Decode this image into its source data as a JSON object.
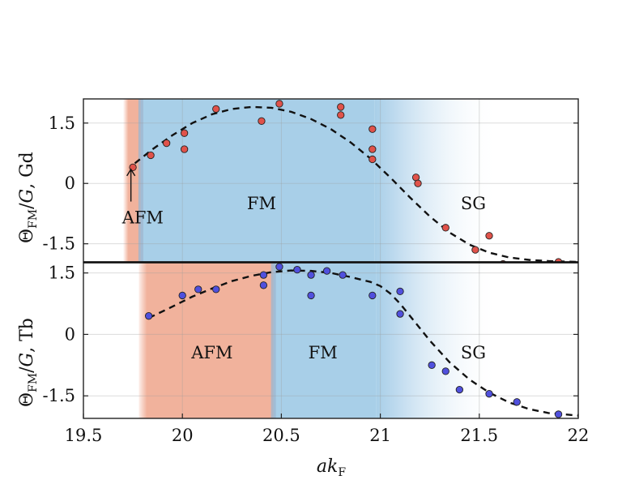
{
  "chart_data": [
    {
      "type": "scatter",
      "panel": "top",
      "ylabel": "ΘFM/G, Gd",
      "xlim": [
        19.5,
        22
      ],
      "ylim": [
        -1.95,
        2.1
      ],
      "yticks": [
        1.5,
        0,
        -1.5
      ],
      "ytick_labels": [
        "1.5",
        "0",
        "-1.5"
      ],
      "grid": true,
      "point_color": "#e0524a",
      "regions": [
        {
          "label": "AFM",
          "from": 19.7,
          "to": 19.79,
          "color": "#efae98"
        },
        {
          "label": "FM",
          "from": 19.79,
          "to": 20.97,
          "color": "#a8cfe8"
        },
        {
          "label": "SG",
          "from": 20.97,
          "to": 21.6,
          "color": "#ffffff"
        }
      ],
      "region_labels": [
        {
          "text": "AFM",
          "x": 19.8,
          "y": -0.85
        },
        {
          "text": "FM",
          "x": 20.4,
          "y": -0.5
        },
        {
          "text": "SG",
          "x": 21.47,
          "y": -0.5
        }
      ],
      "annotation_arrow": {
        "x": 19.74,
        "y_from": -0.45,
        "y_to": 0.35
      },
      "points": [
        {
          "x": 19.75,
          "y": 0.4
        },
        {
          "x": 19.84,
          "y": 0.7
        },
        {
          "x": 19.92,
          "y": 1.0
        },
        {
          "x": 20.01,
          "y": 1.25
        },
        {
          "x": 20.01,
          "y": 0.85
        },
        {
          "x": 20.17,
          "y": 1.85
        },
        {
          "x": 20.4,
          "y": 1.55
        },
        {
          "x": 20.49,
          "y": 1.98
        },
        {
          "x": 20.8,
          "y": 1.9
        },
        {
          "x": 20.8,
          "y": 1.7
        },
        {
          "x": 20.96,
          "y": 1.35
        },
        {
          "x": 20.96,
          "y": 0.85
        },
        {
          "x": 20.96,
          "y": 0.6
        },
        {
          "x": 21.18,
          "y": 0.15
        },
        {
          "x": 21.19,
          "y": 0.0
        },
        {
          "x": 21.33,
          "y": -1.1
        },
        {
          "x": 21.48,
          "y": -1.65
        },
        {
          "x": 21.55,
          "y": -1.3
        },
        {
          "x": 21.62,
          "y": -2.0
        },
        {
          "x": 21.9,
          "y": -1.95
        }
      ],
      "fit_line": {
        "style": "dashed",
        "x": [
          19.76,
          19.85,
          19.95,
          20.05,
          20.15,
          20.25,
          20.35,
          20.45,
          20.55,
          20.65,
          20.75,
          20.85,
          20.95,
          21.05,
          21.15,
          21.25,
          21.35,
          21.45,
          21.55,
          21.65,
          21.75,
          21.85,
          22.0
        ],
        "y": [
          0.5,
          0.85,
          1.2,
          1.5,
          1.72,
          1.85,
          1.9,
          1.88,
          1.78,
          1.6,
          1.35,
          1.02,
          0.62,
          0.15,
          -0.35,
          -0.82,
          -1.22,
          -1.52,
          -1.72,
          -1.84,
          -1.9,
          -1.93,
          -1.95
        ]
      }
    },
    {
      "type": "scatter",
      "panel": "bottom",
      "ylabel": "ΘFM/G, Tb",
      "xlabel": "akF",
      "xlim": [
        19.5,
        22
      ],
      "ylim": [
        -2.05,
        1.75
      ],
      "xticks": [
        19.5,
        20,
        20.5,
        21,
        21.5,
        22
      ],
      "xtick_labels": [
        "19.5",
        "20",
        "20.5",
        "21",
        "21.5",
        "22"
      ],
      "yticks": [
        1.5,
        0,
        -1.5
      ],
      "ytick_labels": [
        "1.5",
        "0",
        "-1.5"
      ],
      "grid": true,
      "point_color": "#5050dd",
      "regions": [
        {
          "label": "AFM",
          "from": 19.78,
          "to": 20.46,
          "color": "#efae98"
        },
        {
          "label": "FM",
          "from": 20.46,
          "to": 20.98,
          "color": "#a8cfe8"
        },
        {
          "label": "SG",
          "from": 20.98,
          "to": 21.6,
          "color": "#ffffff"
        }
      ],
      "region_labels": [
        {
          "text": "AFM",
          "x": 20.15,
          "y": -0.45
        },
        {
          "text": "FM",
          "x": 20.71,
          "y": -0.45
        },
        {
          "text": "SG",
          "x": 21.47,
          "y": -0.45
        }
      ],
      "points": [
        {
          "x": 19.83,
          "y": 0.45
        },
        {
          "x": 20.0,
          "y": 0.95
        },
        {
          "x": 20.08,
          "y": 1.1
        },
        {
          "x": 20.17,
          "y": 1.1
        },
        {
          "x": 20.41,
          "y": 1.45
        },
        {
          "x": 20.41,
          "y": 1.2
        },
        {
          "x": 20.49,
          "y": 1.65
        },
        {
          "x": 20.58,
          "y": 1.58
        },
        {
          "x": 20.65,
          "y": 1.45
        },
        {
          "x": 20.65,
          "y": 0.95
        },
        {
          "x": 20.73,
          "y": 1.55
        },
        {
          "x": 20.81,
          "y": 1.45
        },
        {
          "x": 20.96,
          "y": 0.95
        },
        {
          "x": 21.1,
          "y": 1.05
        },
        {
          "x": 21.1,
          "y": 0.5
        },
        {
          "x": 21.26,
          "y": -0.75
        },
        {
          "x": 21.33,
          "y": -0.9
        },
        {
          "x": 21.4,
          "y": -1.35
        },
        {
          "x": 21.55,
          "y": -1.45
        },
        {
          "x": 21.69,
          "y": -1.65
        },
        {
          "x": 21.9,
          "y": -1.95
        }
      ],
      "fit_line": {
        "style": "dashed",
        "x": [
          19.83,
          19.95,
          20.05,
          20.15,
          20.25,
          20.35,
          20.45,
          20.55,
          20.65,
          20.75,
          20.85,
          20.95,
          21.0,
          21.05,
          21.1,
          21.15,
          21.25,
          21.35,
          21.45,
          21.55,
          21.65,
          21.75,
          21.85,
          22.0
        ],
        "y": [
          0.4,
          0.68,
          0.92,
          1.12,
          1.3,
          1.43,
          1.52,
          1.56,
          1.55,
          1.5,
          1.4,
          1.28,
          1.18,
          1.0,
          0.75,
          0.45,
          -0.15,
          -0.68,
          -1.1,
          -1.42,
          -1.66,
          -1.82,
          -1.92,
          -1.98
        ]
      }
    }
  ]
}
